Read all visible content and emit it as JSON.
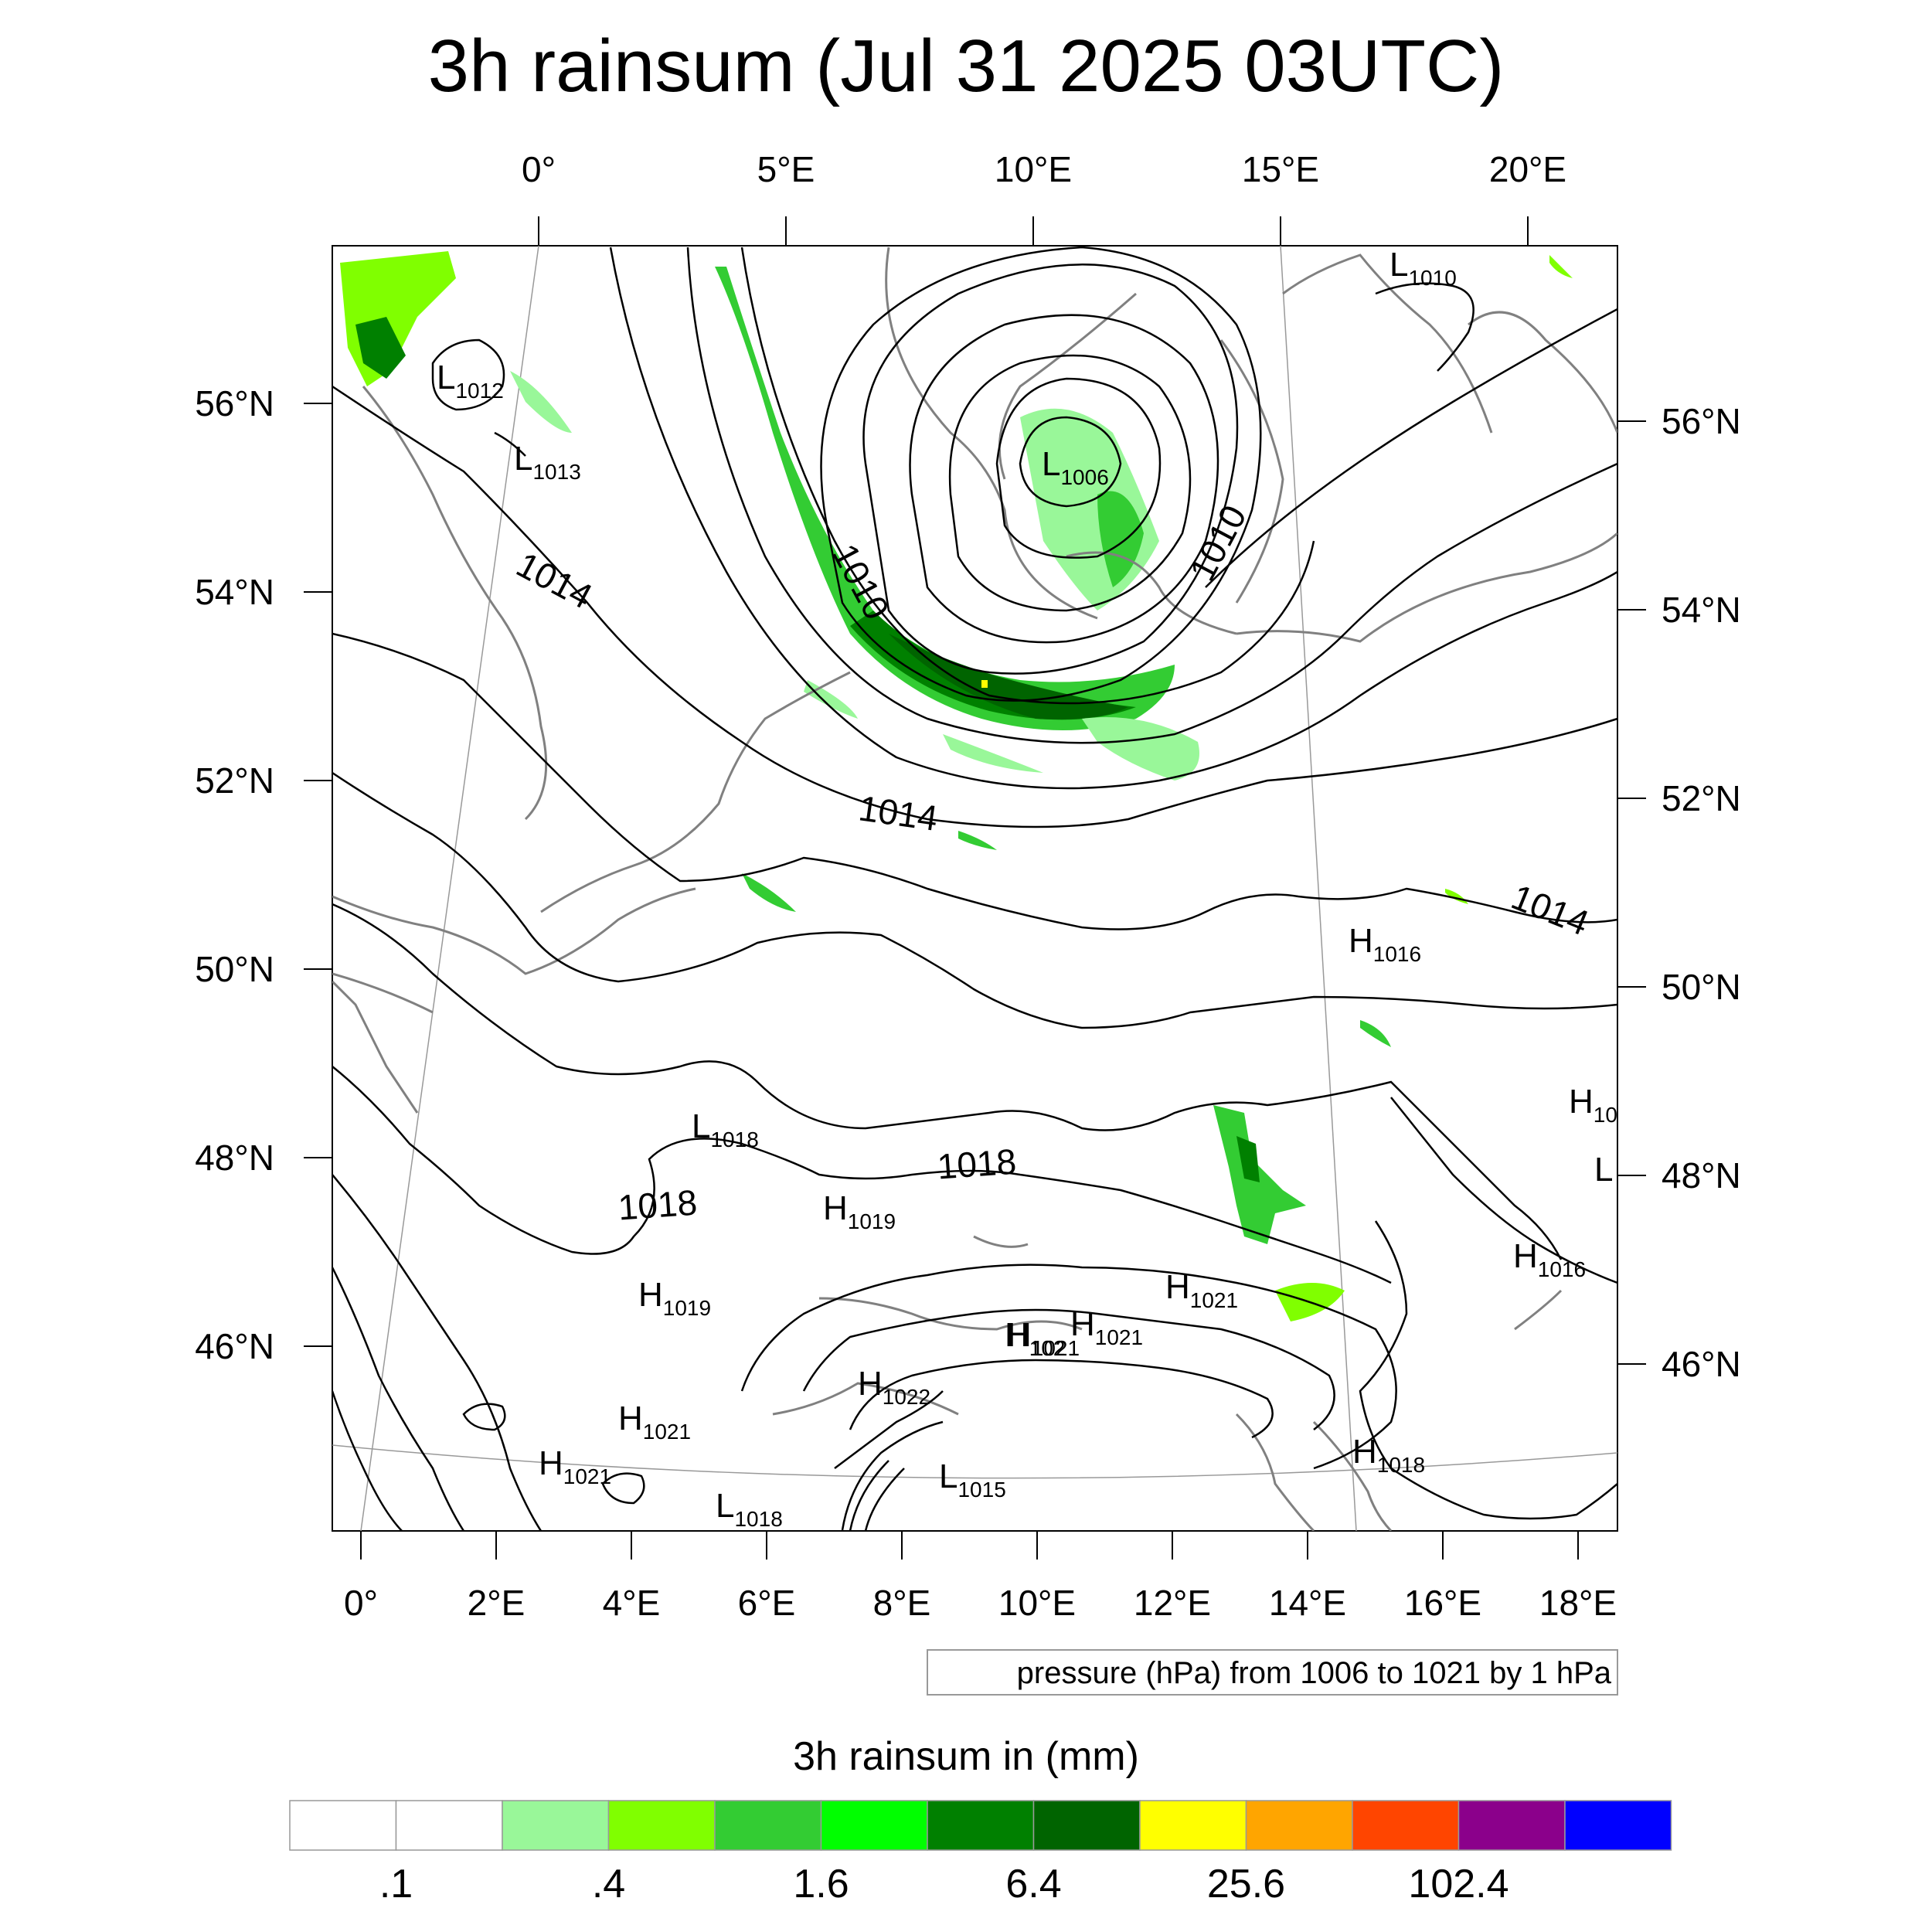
{
  "title": "3h rainsum (Jul 31 2025 03UTC)",
  "top_lon_labels": [
    "0°",
    "5°E",
    "10°E",
    "15°E",
    "20°E"
  ],
  "bottom_lon_labels": [
    "0°",
    "2°E",
    "4°E",
    "6°E",
    "8°E",
    "10°E",
    "12°E",
    "14°E",
    "16°E",
    "18°E"
  ],
  "left_lat_labels": [
    "56°N",
    "54°N",
    "52°N",
    "50°N",
    "48°N",
    "46°N"
  ],
  "right_lat_labels": [
    "56°N",
    "54°N",
    "52°N",
    "50°N",
    "48°N",
    "46°N"
  ],
  "pressure_systems": [
    {
      "type": "L",
      "value": "1010"
    },
    {
      "type": "L",
      "value": "1012"
    },
    {
      "type": "L",
      "value": "1013"
    },
    {
      "type": "L",
      "value": "1006"
    },
    {
      "type": "H",
      "value": "1016"
    },
    {
      "type": "H",
      "value": "10"
    },
    {
      "type": "L",
      "value": ""
    },
    {
      "type": "L",
      "value": "1018"
    },
    {
      "type": "H",
      "value": "1019"
    },
    {
      "type": "H",
      "value": "1019"
    },
    {
      "type": "H",
      "value": "1021"
    },
    {
      "type": "H",
      "value": "1021"
    },
    {
      "type": "H",
      "value": "1021"
    },
    {
      "type": "H",
      "value": "102"
    },
    {
      "type": "H",
      "value": "1016"
    },
    {
      "type": "H",
      "value": "1022"
    },
    {
      "type": "H",
      "value": "1021"
    },
    {
      "type": "H",
      "value": "1021"
    },
    {
      "type": "L",
      "value": "1015"
    },
    {
      "type": "L",
      "value": "1018"
    },
    {
      "type": "H",
      "value": "1018"
    }
  ],
  "contour_labels": [
    "1014",
    "1010",
    "1010",
    "1014",
    "1014",
    "1018",
    "1018"
  ],
  "contour_note": "pressure (hPa) from 1006 to 1021 by 1 hPa",
  "colorbar": {
    "title": "3h rainsum in (mm)",
    "labels": [
      ".1",
      ".4",
      "1.6",
      "6.4",
      "25.6",
      "102.4"
    ],
    "colors": [
      "#ffffff",
      "#ffffff",
      "#99f799",
      "#80ff00",
      "#33cc33",
      "#00ff00",
      "#008000",
      "#006400",
      "#ffff00",
      "#ffa500",
      "#ff4500",
      "#8b008b",
      "#0000ff"
    ]
  }
}
